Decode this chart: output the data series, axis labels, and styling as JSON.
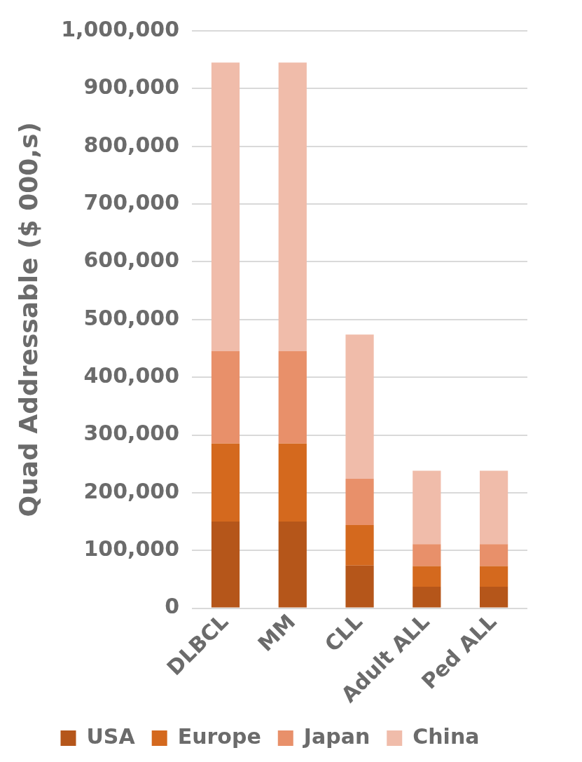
{
  "chart_data": {
    "type": "bar",
    "stacked": true,
    "ylabel": "Quad Addressable ($ 000,s)",
    "categories": [
      "DLBCL",
      "MM",
      "CLL",
      "Adult ALL",
      "Ped ALL"
    ],
    "series": [
      {
        "name": "USA",
        "color": "#b5561a",
        "values": [
          150000,
          150000,
          74000,
          37000,
          37000
        ]
      },
      {
        "name": "Europe",
        "color": "#d4691e",
        "values": [
          135000,
          135000,
          70000,
          36000,
          36000
        ]
      },
      {
        "name": "Japan",
        "color": "#e8906a",
        "values": [
          160000,
          160000,
          80000,
          38000,
          38000
        ]
      },
      {
        "name": "China",
        "color": "#f0bcaa",
        "values": [
          500000,
          500000,
          250000,
          127000,
          127000
        ]
      }
    ],
    "ylim": [
      0,
      1000000
    ],
    "yticks": [
      0,
      {
        "value": 100000,
        "label": "100,000"
      },
      {
        "value": 200000,
        "label": "200,000"
      },
      {
        "value": 300000,
        "label": "300,000"
      },
      {
        "value": 400000,
        "label": "400,000"
      },
      {
        "value": 500000,
        "label": "500,000"
      },
      {
        "value": 600000,
        "label": "600,000"
      },
      {
        "value": 700000,
        "label": "700,000"
      },
      {
        "value": 800000,
        "label": "800,000"
      },
      {
        "value": 900000,
        "label": "900,000"
      },
      {
        "value": 1000000,
        "label": "1,000,000"
      }
    ],
    "grid": "y",
    "legend": "bottom"
  }
}
